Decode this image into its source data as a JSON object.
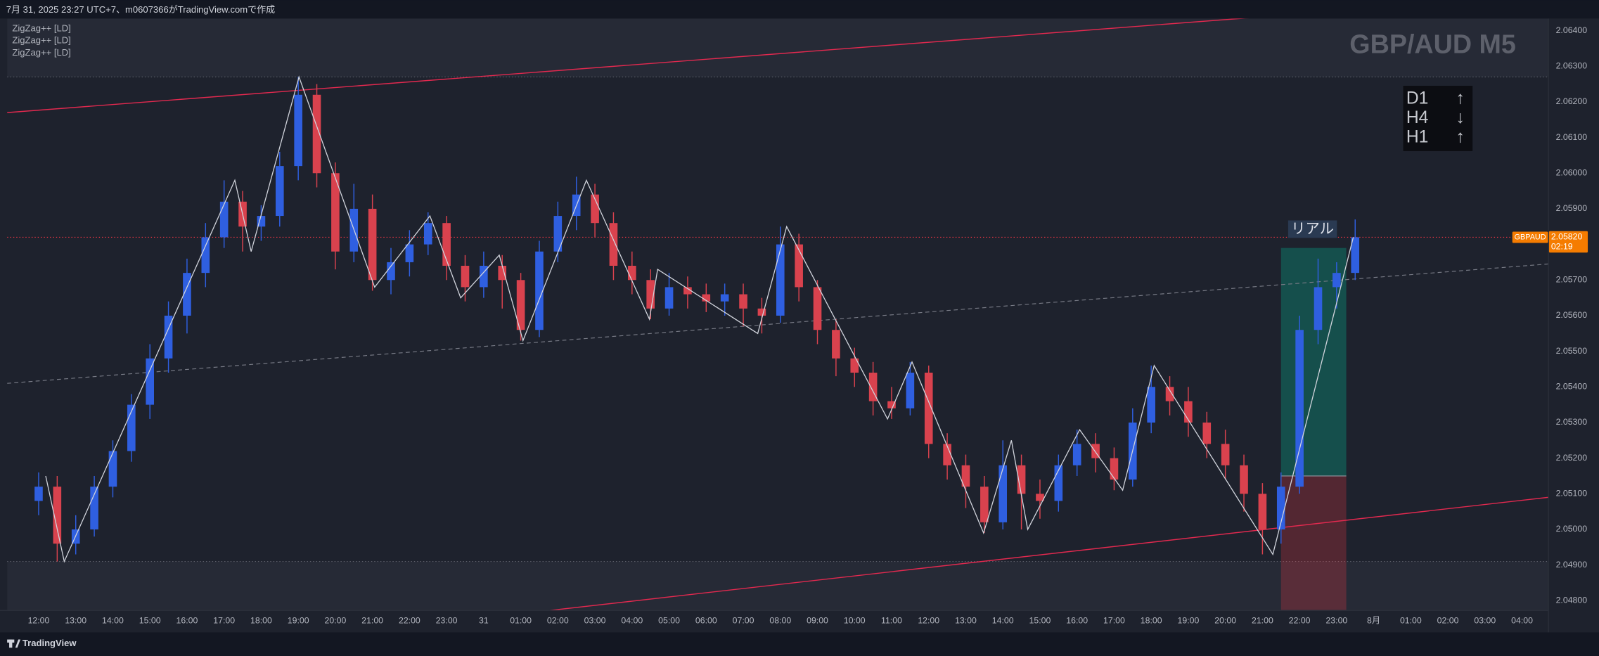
{
  "header": {
    "caption": "7月 31, 2025 23:27 UTC+7、m0607366がTradingView.comで作成"
  },
  "footer": {
    "brand": "TradingView"
  },
  "chart_data": {
    "type": "candlestick",
    "title": "GBP/AUD M5",
    "indicators": [
      "ZigZag++ [LD]",
      "ZigZag++ [LD]",
      "ZigZag++ [LD]"
    ],
    "symbol": "GBPAUD",
    "last_price": 2.0582,
    "last_price_label": "2.05820",
    "countdown": "02:19",
    "grid": false,
    "up_color": "#2f5fe0",
    "down_color": "#d9424e",
    "xlim": [
      -0.85,
      40.7
    ],
    "ylim": [
      2.04774,
      2.06434
    ],
    "xticks": [
      {
        "value": 0,
        "label": "12:00"
      },
      {
        "value": 1,
        "label": "13:00"
      },
      {
        "value": 2,
        "label": "14:00"
      },
      {
        "value": 3,
        "label": "15:00"
      },
      {
        "value": 4,
        "label": "16:00"
      },
      {
        "value": 5,
        "label": "17:00"
      },
      {
        "value": 6,
        "label": "18:00"
      },
      {
        "value": 7,
        "label": "19:00"
      },
      {
        "value": 8,
        "label": "20:00"
      },
      {
        "value": 9,
        "label": "21:00"
      },
      {
        "value": 10,
        "label": "22:00"
      },
      {
        "value": 11,
        "label": "23:00"
      },
      {
        "value": 12,
        "label": "31"
      },
      {
        "value": 13,
        "label": "01:00"
      },
      {
        "value": 14,
        "label": "02:00"
      },
      {
        "value": 15,
        "label": "03:00"
      },
      {
        "value": 16,
        "label": "04:00"
      },
      {
        "value": 17,
        "label": "05:00"
      },
      {
        "value": 18,
        "label": "06:00"
      },
      {
        "value": 19,
        "label": "07:00"
      },
      {
        "value": 20,
        "label": "08:00"
      },
      {
        "value": 21,
        "label": "09:00"
      },
      {
        "value": 22,
        "label": "10:00"
      },
      {
        "value": 23,
        "label": "11:00"
      },
      {
        "value": 24,
        "label": "12:00"
      },
      {
        "value": 25,
        "label": "13:00"
      },
      {
        "value": 26,
        "label": "14:00"
      },
      {
        "value": 27,
        "label": "15:00"
      },
      {
        "value": 28,
        "label": "16:00"
      },
      {
        "value": 29,
        "label": "17:00"
      },
      {
        "value": 30,
        "label": "18:00"
      },
      {
        "value": 31,
        "label": "19:00"
      },
      {
        "value": 32,
        "label": "20:00"
      },
      {
        "value": 33,
        "label": "21:00"
      },
      {
        "value": 34,
        "label": "22:00"
      },
      {
        "value": 35,
        "label": "23:00"
      },
      {
        "value": 36,
        "label": "8月"
      },
      {
        "value": 37,
        "label": "01:00"
      },
      {
        "value": 38,
        "label": "02:00"
      },
      {
        "value": 39,
        "label": "03:00"
      },
      {
        "value": 40,
        "label": "04:00"
      }
    ],
    "yticks": [
      {
        "value": 2.048,
        "label": "2.04800"
      },
      {
        "value": 2.049,
        "label": "2.04900"
      },
      {
        "value": 2.05,
        "label": "2.05000"
      },
      {
        "value": 2.051,
        "label": "2.05100"
      },
      {
        "value": 2.052,
        "label": "2.05200"
      },
      {
        "value": 2.053,
        "label": "2.05300"
      },
      {
        "value": 2.054,
        "label": "2.05400"
      },
      {
        "value": 2.055,
        "label": "2.05500"
      },
      {
        "value": 2.056,
        "label": "2.05600"
      },
      {
        "value": 2.057,
        "label": "2.05700"
      },
      {
        "value": 2.058,
        "label": "2.05800"
      },
      {
        "value": 2.059,
        "label": "2.05900"
      },
      {
        "value": 2.06,
        "label": "2.06000"
      },
      {
        "value": 2.061,
        "label": "2.06100"
      },
      {
        "value": 2.062,
        "label": "2.06200"
      },
      {
        "value": 2.063,
        "label": "2.06300"
      },
      {
        "value": 2.064,
        "label": "2.06400"
      }
    ],
    "candles": {
      "x": [
        0,
        0.5,
        1,
        1.5,
        2,
        2.5,
        3,
        3.5,
        4,
        4.5,
        5,
        5.5,
        6,
        6.5,
        7,
        7.5,
        8,
        8.5,
        9,
        9.5,
        10,
        10.5,
        11,
        11.5,
        12,
        12.5,
        13,
        13.5,
        14,
        14.5,
        15,
        15.5,
        16,
        16.5,
        17,
        17.5,
        18,
        18.5,
        19,
        19.5,
        20,
        20.5,
        21,
        21.5,
        22,
        22.5,
        23,
        23.5,
        24,
        24.5,
        25,
        25.5,
        26,
        26.5,
        27,
        27.5,
        28,
        28.5,
        29,
        29.5,
        30,
        30.5,
        31,
        31.5,
        32,
        32.5,
        33,
        33.5,
        34,
        34.5,
        35,
        35.5
      ],
      "open": [
        2.0508,
        2.0512,
        2.0496,
        2.05,
        2.0512,
        2.0522,
        2.0535,
        2.0548,
        2.056,
        2.0572,
        2.0582,
        2.0592,
        2.0585,
        2.0588,
        2.0602,
        2.0622,
        2.06,
        2.0578,
        2.059,
        2.057,
        2.0575,
        2.058,
        2.0586,
        2.0574,
        2.0568,
        2.0574,
        2.057,
        2.0556,
        2.0578,
        2.0588,
        2.0594,
        2.0586,
        2.0574,
        2.057,
        2.0562,
        2.0568,
        2.0566,
        2.0564,
        2.0566,
        2.0562,
        2.056,
        2.058,
        2.0568,
        2.0556,
        2.0548,
        2.0544,
        2.0536,
        2.0534,
        2.0544,
        2.0524,
        2.0518,
        2.0512,
        2.0502,
        2.0518,
        2.051,
        2.0508,
        2.0518,
        2.0524,
        2.052,
        2.0514,
        2.053,
        2.054,
        2.0536,
        2.053,
        2.0524,
        2.0518,
        2.051,
        2.05,
        2.0512,
        2.0556,
        2.0568,
        2.0572
      ],
      "high": [
        2.0516,
        2.0515,
        2.0504,
        2.0515,
        2.0525,
        2.0538,
        2.0552,
        2.0564,
        2.0576,
        2.0586,
        2.0598,
        2.0595,
        2.0591,
        2.0606,
        2.0627,
        2.0625,
        2.0603,
        2.0597,
        2.0594,
        2.0579,
        2.0584,
        2.0589,
        2.0588,
        2.0577,
        2.0578,
        2.0577,
        2.0572,
        2.0581,
        2.0592,
        2.0599,
        2.0597,
        2.0589,
        2.0578,
        2.0573,
        2.0572,
        2.0571,
        2.0569,
        2.0569,
        2.0569,
        2.0565,
        2.0585,
        2.0583,
        2.057,
        2.0559,
        2.0551,
        2.0547,
        2.054,
        2.0547,
        2.0546,
        2.0527,
        2.0521,
        2.0515,
        2.0525,
        2.0521,
        2.0514,
        2.0521,
        2.0528,
        2.0527,
        2.0523,
        2.0534,
        2.0546,
        2.0543,
        2.054,
        2.0533,
        2.0528,
        2.0521,
        2.0513,
        2.0516,
        2.056,
        2.0576,
        2.0575,
        2.0587
      ],
      "low": [
        2.0504,
        2.0491,
        2.0493,
        2.0498,
        2.0509,
        2.0519,
        2.0531,
        2.0544,
        2.0555,
        2.0568,
        2.0579,
        2.0578,
        2.0581,
        2.0585,
        2.0598,
        2.0596,
        2.0573,
        2.0575,
        2.0567,
        2.0566,
        2.0571,
        2.0577,
        2.057,
        2.0564,
        2.0565,
        2.0562,
        2.0553,
        2.0554,
        2.0575,
        2.0584,
        2.0582,
        2.057,
        2.0566,
        2.0559,
        2.056,
        2.0562,
        2.0561,
        2.056,
        2.0557,
        2.0555,
        2.0558,
        2.0564,
        2.0552,
        2.0543,
        2.054,
        2.0532,
        2.0531,
        2.0532,
        2.052,
        2.0514,
        2.0506,
        2.0499,
        2.05,
        2.05,
        2.0503,
        2.0505,
        2.0515,
        2.0516,
        2.0511,
        2.0512,
        2.0527,
        2.0532,
        2.0526,
        2.052,
        2.0514,
        2.0505,
        2.0493,
        2.0496,
        2.051,
        2.0552,
        2.0562,
        2.057
      ],
      "close": [
        2.0512,
        2.0496,
        2.05,
        2.0512,
        2.0522,
        2.0535,
        2.0548,
        2.056,
        2.0572,
        2.0582,
        2.0592,
        2.0585,
        2.0588,
        2.0602,
        2.0622,
        2.06,
        2.0578,
        2.059,
        2.057,
        2.0575,
        2.058,
        2.0586,
        2.0574,
        2.0568,
        2.0574,
        2.057,
        2.0556,
        2.0578,
        2.0588,
        2.0594,
        2.0586,
        2.0574,
        2.057,
        2.0562,
        2.0568,
        2.0566,
        2.0564,
        2.0566,
        2.0562,
        2.056,
        2.058,
        2.0568,
        2.0556,
        2.0548,
        2.0544,
        2.0536,
        2.0534,
        2.0544,
        2.0524,
        2.0518,
        2.0512,
        2.0502,
        2.0518,
        2.051,
        2.0508,
        2.0518,
        2.0524,
        2.052,
        2.0514,
        2.053,
        2.054,
        2.0536,
        2.053,
        2.0524,
        2.0518,
        2.051,
        2.05,
        2.0512,
        2.0556,
        2.0568,
        2.0572,
        2.0582
      ]
    },
    "zigzag": {
      "color": "#d1d4dc",
      "x": [
        0.19,
        0.69,
        5.29,
        5.73,
        7.02,
        9.06,
        10.55,
        11.38,
        12.42,
        13.06,
        14.77,
        16.47,
        16.69,
        19.39,
        20.17,
        22.89,
        23.55,
        25.48,
        26.23,
        26.67,
        28.07,
        29.23,
        30.08,
        33.28,
        35.45
      ],
      "y": [
        2.0515,
        2.0491,
        2.0598,
        2.0578,
        2.0627,
        2.0568,
        2.0588,
        2.0565,
        2.0577,
        2.0553,
        2.0598,
        2.0559,
        2.0573,
        2.0555,
        2.0585,
        2.0531,
        2.0547,
        2.0499,
        2.0525,
        2.05,
        2.0528,
        2.0511,
        2.0546,
        2.0493,
        2.0582
      ]
    },
    "range_high": 2.0627,
    "range_low": 2.0491,
    "channel": {
      "color": "#e2294f",
      "upper": {
        "x": [
          -0.85,
          40.7
        ],
        "y": [
          2.0617,
          2.065
        ]
      },
      "middle": {
        "x": [
          -0.85,
          40.7
        ],
        "y": [
          2.0541,
          2.05745
        ]
      },
      "lower": {
        "x": [
          -0.85,
          40.7
        ],
        "y": [
          2.046,
          2.0509
        ]
      }
    },
    "position": {
      "label": "リアル",
      "start": 33.5,
      "end": 35.26,
      "entry": 2.0515,
      "target": 2.0579,
      "stop": 2.0476
    },
    "trend_table": [
      [
        "D1",
        "↑"
      ],
      [
        "H4",
        "↓"
      ],
      [
        "H1",
        "↑"
      ]
    ]
  }
}
